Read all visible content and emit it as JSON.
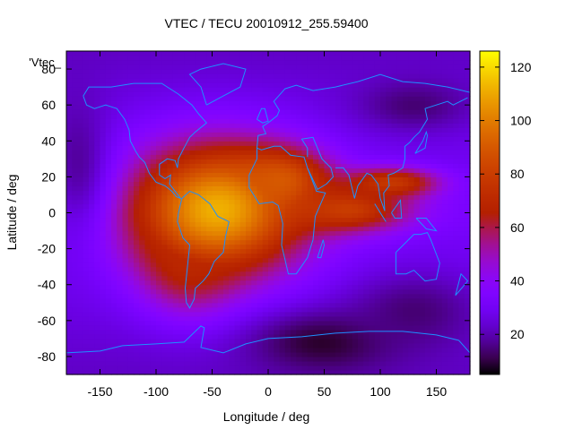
{
  "chart_data": {
    "type": "heatmap",
    "title": "VTEC / TECU 20010912_255.59400",
    "xlabel": "Longitude / deg",
    "ylabel": "Latitude / deg",
    "xlim": [
      -180,
      180
    ],
    "ylim": [
      -90,
      90
    ],
    "x_ticks": [
      -150,
      -100,
      -50,
      0,
      50,
      100,
      150
    ],
    "y_ticks": [
      -80,
      -60,
      -40,
      -20,
      0,
      20,
      40,
      60,
      80
    ],
    "colorbar": {
      "min": 5,
      "max": 126,
      "ticks": [
        20,
        40,
        60,
        80,
        100,
        120
      ]
    },
    "legend_label": "'Vtec_",
    "background_value": 32,
    "features": [
      {
        "type": "peak",
        "lon": -45,
        "lat": 2,
        "value": 112,
        "sx": 55,
        "sy": 26
      },
      {
        "type": "peak",
        "lon": 10,
        "lat": 18,
        "value": 90,
        "sx": 30,
        "sy": 12
      },
      {
        "type": "peak",
        "lon": 70,
        "lat": 2,
        "value": 80,
        "sx": 40,
        "sy": 9
      },
      {
        "type": "peak",
        "lon": 110,
        "lat": 17,
        "value": 78,
        "sx": 30,
        "sy": 6
      },
      {
        "type": "peak",
        "lon": -70,
        "lat": -25,
        "value": 70,
        "sx": 30,
        "sy": 20
      },
      {
        "type": "trough",
        "lon": 50,
        "lat": -72,
        "value": 8,
        "sx": 45,
        "sy": 12
      },
      {
        "type": "trough",
        "lon": 130,
        "lat": -55,
        "value": 14,
        "sx": 40,
        "sy": 15
      },
      {
        "type": "trough",
        "lon": 130,
        "lat": 60,
        "value": 14,
        "sx": 35,
        "sy": 10
      },
      {
        "type": "trough",
        "lon": -170,
        "lat": 30,
        "value": 18,
        "sx": 20,
        "sy": 30
      }
    ],
    "grid": false,
    "coastline_color": "#1E90FF"
  }
}
